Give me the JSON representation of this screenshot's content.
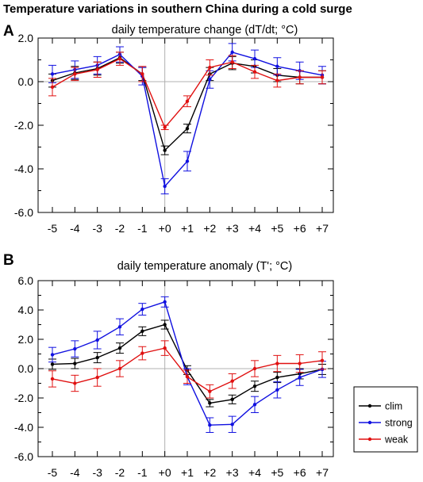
{
  "figure": {
    "title": "Temperature variations in southern China during a cold surge"
  },
  "legend": {
    "entries": [
      {
        "label": "clim",
        "color": "#000000"
      },
      {
        "label": "strong",
        "color": "#1010e0"
      },
      {
        "label": "weak",
        "color": "#e01010"
      }
    ]
  },
  "chart_data": [
    {
      "type": "line",
      "panel": "A",
      "title": "daily temperature change (dT/dt; °C)",
      "xlabel": "",
      "ylabel": "",
      "categories": [
        "-5",
        "-4",
        "-3",
        "-2",
        "-1",
        "+0",
        "+1",
        "+2",
        "+3",
        "+4",
        "+5",
        "+6",
        "+7"
      ],
      "ylim": [
        -6.0,
        2.0
      ],
      "yticks": [
        2.0,
        0.0,
        -2.0,
        -4.0,
        -6.0
      ],
      "ytick_labels": [
        "2.0",
        "0.0",
        "-2.0",
        "-4.0",
        "-6.0"
      ],
      "zero_line": true,
      "vertical_line_at": "+0",
      "series": [
        {
          "name": "clim",
          "color": "#000000",
          "values": [
            0.05,
            0.4,
            0.6,
            1.1,
            0.35,
            -3.15,
            -2.15,
            0.35,
            0.85,
            0.7,
            0.3,
            0.2,
            0.2
          ],
          "errors": [
            0.3,
            0.3,
            0.3,
            0.25,
            0.3,
            0.2,
            0.2,
            0.3,
            0.3,
            0.3,
            0.3,
            0.3,
            0.3
          ]
        },
        {
          "name": "strong",
          "color": "#1010e0",
          "values": [
            0.35,
            0.55,
            0.75,
            1.25,
            0.25,
            -4.8,
            -3.65,
            0.1,
            1.35,
            1.05,
            0.7,
            0.5,
            0.3
          ],
          "errors": [
            0.4,
            0.4,
            0.4,
            0.35,
            0.4,
            0.35,
            0.45,
            0.4,
            0.4,
            0.4,
            0.4,
            0.4,
            0.4
          ]
        },
        {
          "name": "weak",
          "color": "#e01010",
          "values": [
            -0.25,
            0.35,
            0.55,
            1.05,
            0.35,
            -2.1,
            -0.9,
            0.65,
            0.9,
            0.45,
            0.05,
            0.2,
            0.2
          ],
          "errors": [
            0.4,
            0.3,
            0.35,
            0.3,
            0.35,
            0.1,
            0.25,
            0.35,
            0.3,
            0.3,
            0.3,
            0.3,
            0.3
          ]
        }
      ]
    },
    {
      "type": "line",
      "panel": "B",
      "title": "daily temperature anomaly (T'; °C)",
      "xlabel": "",
      "ylabel": "",
      "categories": [
        "-5",
        "-4",
        "-3",
        "-2",
        "-1",
        "+0",
        "+1",
        "+2",
        "+3",
        "+4",
        "+5",
        "+6",
        "+7"
      ],
      "ylim": [
        -6.0,
        6.0
      ],
      "yticks": [
        6.0,
        4.0,
        2.0,
        0.0,
        -2.0,
        -4.0,
        -6.0
      ],
      "ytick_labels": [
        "6.0",
        "4.0",
        "2.0",
        "0.0",
        "-2.0",
        "-4.0",
        "-6.0"
      ],
      "zero_line": true,
      "vertical_line_at": "+0",
      "series": [
        {
          "name": "clim",
          "color": "#000000",
          "values": [
            0.3,
            0.35,
            0.75,
            1.4,
            2.55,
            3.0,
            -0.1,
            -2.35,
            -2.1,
            -1.2,
            -0.6,
            -0.35,
            -0.05
          ],
          "errors": [
            0.35,
            0.35,
            0.35,
            0.35,
            0.3,
            0.3,
            0.3,
            0.25,
            0.3,
            0.35,
            0.35,
            0.35,
            0.35
          ]
        },
        {
          "name": "strong",
          "color": "#1010e0",
          "values": [
            0.95,
            1.35,
            1.95,
            2.85,
            4.05,
            4.55,
            -0.55,
            -3.85,
            -3.8,
            -2.45,
            -1.45,
            -0.6,
            -0.05
          ],
          "errors": [
            0.5,
            0.55,
            0.6,
            0.55,
            0.4,
            0.35,
            0.55,
            0.5,
            0.55,
            0.55,
            0.55,
            0.55,
            0.55
          ]
        },
        {
          "name": "weak",
          "color": "#e01010",
          "values": [
            -0.7,
            -1.0,
            -0.6,
            0.0,
            1.05,
            1.4,
            -0.55,
            -1.55,
            -0.85,
            0.0,
            0.35,
            0.35,
            0.55
          ],
          "errors": [
            0.55,
            0.55,
            0.6,
            0.55,
            0.45,
            0.5,
            0.45,
            0.45,
            0.5,
            0.55,
            0.55,
            0.6,
            0.6
          ]
        }
      ]
    }
  ]
}
